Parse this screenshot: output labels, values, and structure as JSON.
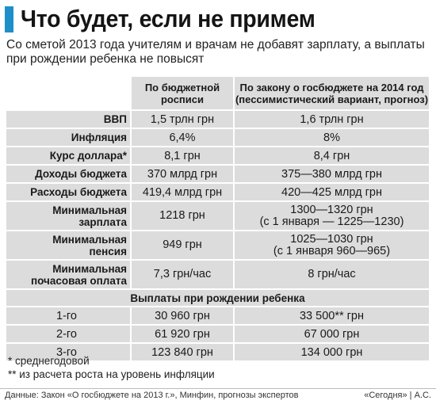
{
  "title": "Что будет, если не примем",
  "subtitle": "Со сметой 2013 года учителям и врачам не добавят зарплату, а выплаты при рождении ребенка не повысят",
  "table": {
    "col2_header": "По бюджетной росписи",
    "col3_header": "По закону о госбюджете на 2014 год (пессимистический вариант, прогноз)",
    "rows": [
      {
        "label": "ВВП",
        "v2013": "1,5 трлн грн",
        "v2014": "1,6 трлн грн"
      },
      {
        "label": "Инфляция",
        "v2013": "6,4%",
        "v2014": "8%"
      },
      {
        "label": "Курс доллара*",
        "v2013": "8,1 грн",
        "v2014": "8,4 грн"
      },
      {
        "label": "Доходы бюджета",
        "v2013": "370 млрд грн",
        "v2014": "375—380 млрд грн"
      },
      {
        "label": "Расходы бюджета",
        "v2013": "419,4 млрд грн",
        "v2014": "420—425 млрд грн"
      }
    ],
    "min_wage": {
      "label_line1": "Минимальная",
      "label_line2": "зарплата",
      "v2013": "1218 грн",
      "v2014_line1": "1300—1320 грн",
      "v2014_line2": "(с 1 января — 1225—1230)"
    },
    "min_pension": {
      "label_line1": "Минимальная",
      "label_line2": "пенсия",
      "v2013": "949 грн",
      "v2014_line1": "1025—1030 грн",
      "v2014_line2": "(с 1 января 960—965)"
    },
    "min_hourly": {
      "label_line1": "Минимальная",
      "label_line2": "почасовая оплата",
      "v2013": "7,3 грн/час",
      "v2014": "8 грн/час"
    },
    "birth_section": "Выплаты при рождении ребенка",
    "birth_rows": [
      {
        "label": "1-го",
        "v2013": "30 960 грн",
        "v2014": "33 500** грн"
      },
      {
        "label": "2-го",
        "v2013": "61 920 грн",
        "v2014": "67 000 грн"
      },
      {
        "label": "3-го",
        "v2013": "123 840 грн",
        "v2014": "134 000 грн"
      }
    ]
  },
  "notes": [
    "* среднегодовой",
    "** из расчета роста на уровень инфляции"
  ],
  "footer": {
    "source": "Данные: Закон «О госбюджете на 2013 г.», Минфин, прогнозы экспертов",
    "credit": "«Сегодня» | А.С."
  },
  "colors": {
    "accent": "#1f8fc9",
    "shade": "#dcdcdc"
  }
}
